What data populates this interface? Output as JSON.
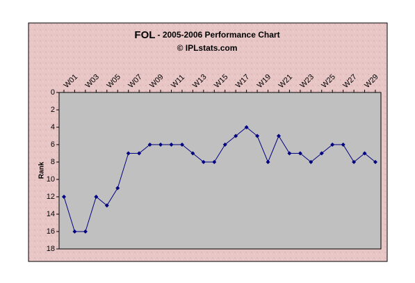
{
  "chart_data": {
    "type": "line",
    "title": "FOL",
    "title_suffix": "- 2005-2006 Performance Chart",
    "subtitle": "© IPLstats.com",
    "y_label": "Rank",
    "categories": [
      "W01",
      null,
      "W03",
      null,
      "W05",
      null,
      "W07",
      null,
      "W09",
      null,
      "W11",
      null,
      "W13",
      null,
      "W15",
      null,
      "W17",
      null,
      "W19",
      null,
      "W21",
      null,
      "W23",
      null,
      "W25",
      null,
      "W27",
      null,
      "W29",
      null
    ],
    "series": [
      {
        "name": "FOL",
        "color": "#000080",
        "values": [
          12,
          16,
          16,
          12,
          13,
          11,
          7,
          7,
          6,
          6,
          6,
          6,
          7,
          8,
          8,
          6,
          5,
          4,
          5,
          8,
          5,
          7,
          7,
          8,
          7,
          6,
          6,
          8,
          7,
          8
        ]
      }
    ],
    "ylim": [
      0,
      18
    ],
    "y_reversed": true,
    "yticks": [
      0,
      2,
      4,
      6,
      8,
      10,
      12,
      14,
      16,
      18
    ],
    "grid": false
  }
}
